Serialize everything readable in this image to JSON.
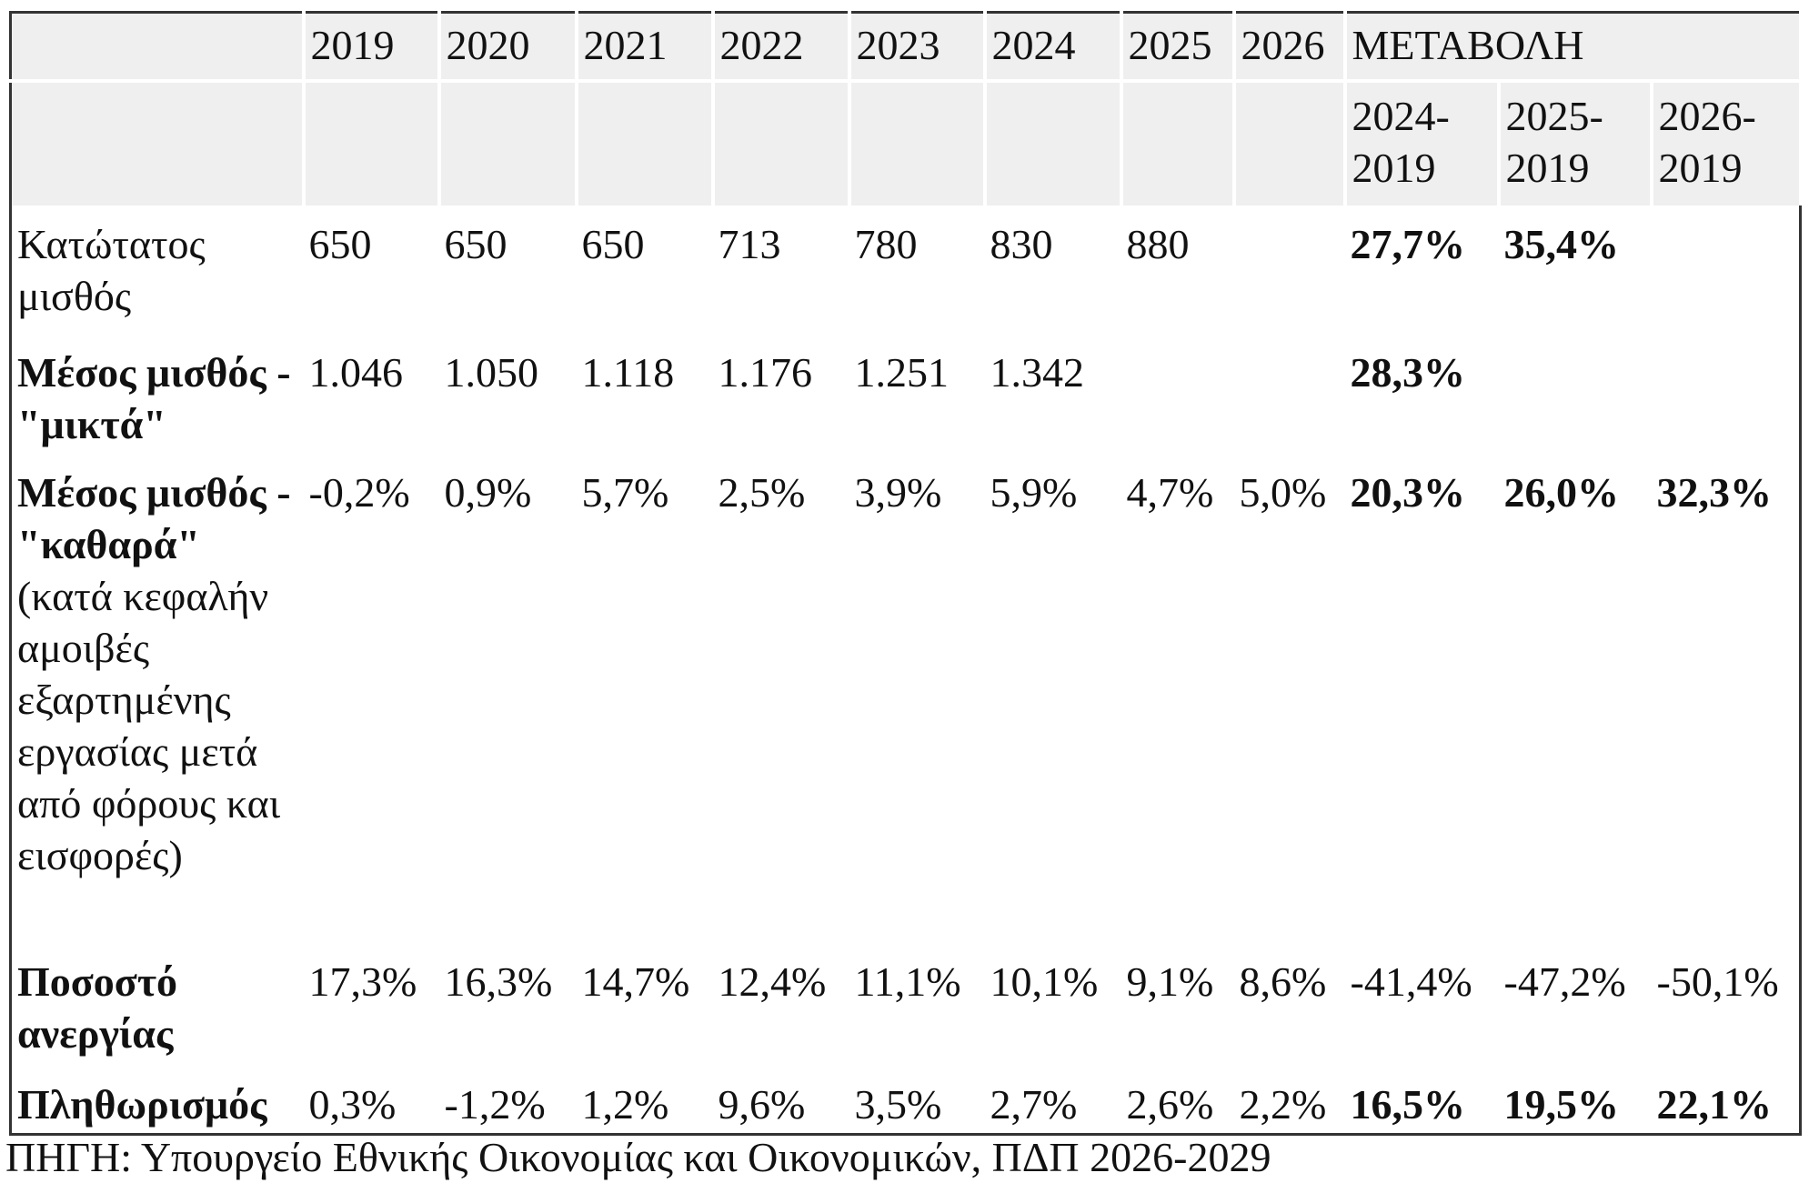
{
  "table": {
    "header": {
      "years": [
        "2019",
        "2020",
        "2021",
        "2022",
        "2023",
        "2024",
        "2025",
        "2026"
      ],
      "change_title": "ΜΕΤΑΒΟΛΗ",
      "change_periods": [
        "2024-2019",
        "2025-2019",
        "2026-2019"
      ]
    },
    "rows": [
      {
        "label": "Κατώτατος μισθός",
        "values": [
          "650",
          "650",
          "650",
          "713",
          "780",
          "830",
          "880",
          null,
          "27,7%",
          "35,4%",
          null
        ]
      },
      {
        "label": "Μέσος μισθός - \"μικτά\"",
        "values": [
          "1.046",
          "1.050",
          "1.118",
          "1.176",
          "1.251",
          "1.342",
          null,
          null,
          "28,3%",
          null,
          null
        ]
      },
      {
        "label": "Μέσος μισθός - \"καθαρά\"",
        "note": "(κατά κεφαλήν αμοιβές εξαρτημένης εργασίας μετά από φόρους και εισφορές)",
        "values": [
          "-0,2%",
          "0,9%",
          "5,7%",
          "2,5%",
          "3,9%",
          "5,9%",
          "4,7%",
          "5,0%",
          "20,3%",
          "26,0%",
          "32,3%"
        ]
      },
      {
        "label": "Ποσοστό ανεργίας",
        "values": [
          "17,3%",
          "16,3%",
          "14,7%",
          "12,4%",
          "11,1%",
          "10,1%",
          "9,1%",
          "8,6%",
          "-41,4%",
          "-47,2%",
          "-50,1%"
        ]
      },
      {
        "label": "Πληθωρισμός",
        "values": [
          "0,3%",
          "-1,2%",
          "1,2%",
          "9,6%",
          "3,5%",
          "2,7%",
          "2,6%",
          "2,2%",
          "16,5%",
          "19,5%",
          "22,1%"
        ]
      }
    ]
  },
  "source": "ΠΗΓΗ: Υπουργείο Εθνικής Οικονομίας και Οικονομικών, ΠΔΠ 2026-2029"
}
